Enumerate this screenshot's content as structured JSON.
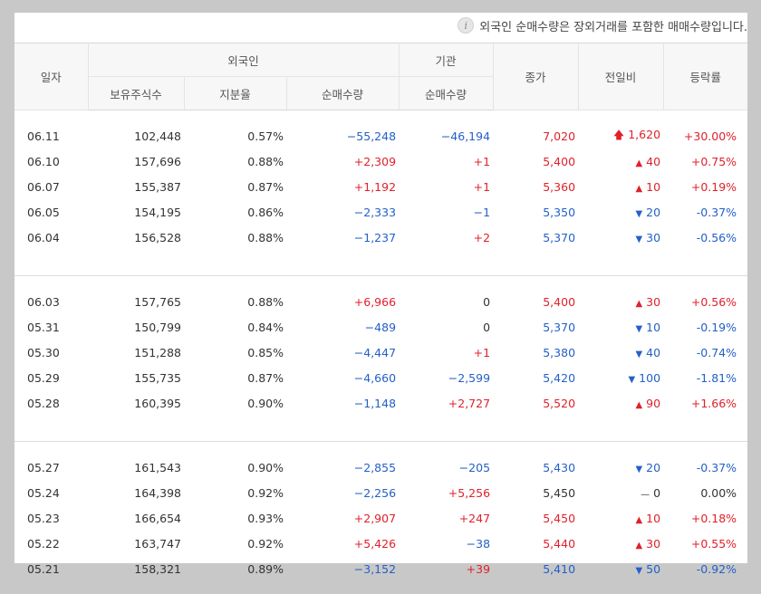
{
  "notice": "외국인 순매수량은 장외거래를 포함한 매매수량입니다.",
  "headers": {
    "date": "일자",
    "foreign": "외국인",
    "institution": "기관",
    "close": "종가",
    "change": "전일비",
    "rate": "등락률",
    "holdings": "보유주식수",
    "share": "지분율",
    "foreign_net": "순매수량",
    "inst_net": "순매수량"
  },
  "colors": {
    "up": "#e0212b",
    "down": "#2460c8",
    "neutral": "#333333"
  },
  "groups": [
    [
      {
        "date": "06.11",
        "holdings": "102,448",
        "share": "0.57%",
        "fnet": "−55,248",
        "fdir": "down",
        "inet": "−46,194",
        "idir": "down",
        "close": "7,020",
        "dir": "up",
        "arrow": "upper",
        "change": "1,620",
        "rate": "+30.00%"
      },
      {
        "date": "06.10",
        "holdings": "157,696",
        "share": "0.88%",
        "fnet": "+2,309",
        "fdir": "up",
        "inet": "+1",
        "idir": "up",
        "close": "5,400",
        "dir": "up",
        "arrow": "up",
        "change": "40",
        "rate": "+0.75%"
      },
      {
        "date": "06.07",
        "holdings": "155,387",
        "share": "0.87%",
        "fnet": "+1,192",
        "fdir": "up",
        "inet": "+1",
        "idir": "up",
        "close": "5,360",
        "dir": "up",
        "arrow": "up",
        "change": "10",
        "rate": "+0.19%"
      },
      {
        "date": "06.05",
        "holdings": "154,195",
        "share": "0.86%",
        "fnet": "−2,333",
        "fdir": "down",
        "inet": "−1",
        "idir": "down",
        "close": "5,350",
        "dir": "down",
        "arrow": "down",
        "change": "20",
        "rate": "-0.37%"
      },
      {
        "date": "06.04",
        "holdings": "156,528",
        "share": "0.88%",
        "fnet": "−1,237",
        "fdir": "down",
        "inet": "+2",
        "idir": "up",
        "close": "5,370",
        "dir": "down",
        "arrow": "down",
        "change": "30",
        "rate": "-0.56%"
      }
    ],
    [
      {
        "date": "06.03",
        "holdings": "157,765",
        "share": "0.88%",
        "fnet": "+6,966",
        "fdir": "up",
        "inet": "0",
        "idir": "neutral",
        "close": "5,400",
        "dir": "up",
        "arrow": "up",
        "change": "30",
        "rate": "+0.56%"
      },
      {
        "date": "05.31",
        "holdings": "150,799",
        "share": "0.84%",
        "fnet": "−489",
        "fdir": "down",
        "inet": "0",
        "idir": "neutral",
        "close": "5,370",
        "dir": "down",
        "arrow": "down",
        "change": "10",
        "rate": "-0.19%"
      },
      {
        "date": "05.30",
        "holdings": "151,288",
        "share": "0.85%",
        "fnet": "−4,447",
        "fdir": "down",
        "inet": "+1",
        "idir": "up",
        "close": "5,380",
        "dir": "down",
        "arrow": "down",
        "change": "40",
        "rate": "-0.74%"
      },
      {
        "date": "05.29",
        "holdings": "155,735",
        "share": "0.87%",
        "fnet": "−4,660",
        "fdir": "down",
        "inet": "−2,599",
        "idir": "down",
        "close": "5,420",
        "dir": "down",
        "arrow": "down",
        "change": "100",
        "rate": "-1.81%"
      },
      {
        "date": "05.28",
        "holdings": "160,395",
        "share": "0.90%",
        "fnet": "−1,148",
        "fdir": "down",
        "inet": "+2,727",
        "idir": "up",
        "close": "5,520",
        "dir": "up",
        "arrow": "up",
        "change": "90",
        "rate": "+1.66%"
      }
    ],
    [
      {
        "date": "05.27",
        "holdings": "161,543",
        "share": "0.90%",
        "fnet": "−2,855",
        "fdir": "down",
        "inet": "−205",
        "idir": "down",
        "close": "5,430",
        "dir": "down",
        "arrow": "down",
        "change": "20",
        "rate": "-0.37%"
      },
      {
        "date": "05.24",
        "holdings": "164,398",
        "share": "0.92%",
        "fnet": "−2,256",
        "fdir": "down",
        "inet": "+5,256",
        "idir": "up",
        "close": "5,450",
        "dir": "neutral",
        "arrow": "flat",
        "change": "0",
        "rate": "0.00%"
      },
      {
        "date": "05.23",
        "holdings": "166,654",
        "share": "0.93%",
        "fnet": "+2,907",
        "fdir": "up",
        "inet": "+247",
        "idir": "up",
        "close": "5,450",
        "dir": "up",
        "arrow": "up",
        "change": "10",
        "rate": "+0.18%"
      },
      {
        "date": "05.22",
        "holdings": "163,747",
        "share": "0.92%",
        "fnet": "+5,426",
        "fdir": "up",
        "inet": "−38",
        "idir": "down",
        "close": "5,440",
        "dir": "up",
        "arrow": "up",
        "change": "30",
        "rate": "+0.55%"
      },
      {
        "date": "05.21",
        "holdings": "158,321",
        "share": "0.89%",
        "fnet": "−3,152",
        "fdir": "down",
        "inet": "+39",
        "idir": "up",
        "close": "5,410",
        "dir": "down",
        "arrow": "down",
        "change": "50",
        "rate": "-0.92%"
      }
    ]
  ]
}
